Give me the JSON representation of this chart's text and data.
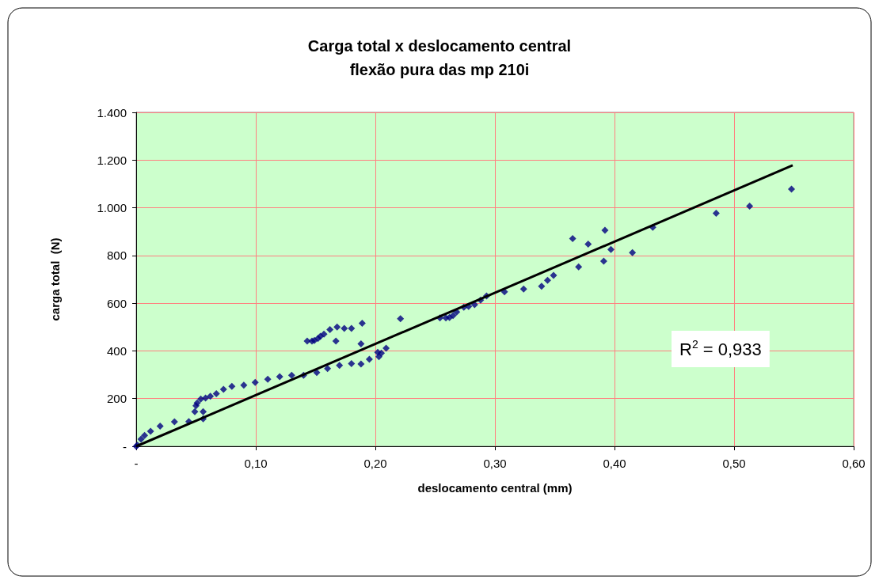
{
  "chart_data": {
    "type": "scatter",
    "title": "Carga total x deslocamento central\nflexão pura das mp 210i",
    "xlabel": "deslocamento central (mm)",
    "ylabel": "carga total  (N)",
    "annotations": [
      "R$^{2}$ = 0,933"
    ],
    "xlim": [
      0,
      0.6
    ],
    "ylim": [
      0,
      1400
    ],
    "xticks": [
      {
        "value": 0,
        "label": "-"
      },
      {
        "value": 0.1,
        "label": "0,10"
      },
      {
        "value": 0.2,
        "label": "0,20"
      },
      {
        "value": 0.3,
        "label": "0,30"
      },
      {
        "value": 0.4,
        "label": "0,40"
      },
      {
        "value": 0.5,
        "label": "0,50"
      },
      {
        "value": 0.6,
        "label": "0,60"
      }
    ],
    "yticks": [
      {
        "value": 0,
        "label": "-"
      },
      200,
      400,
      600,
      800,
      {
        "value": 1000,
        "label": "1.000"
      },
      {
        "value": 1200,
        "label": "1.200"
      },
      {
        "value": 1400,
        "label": "1.400"
      }
    ],
    "grid": true,
    "marker": "diamond",
    "series": [
      {
        "color": "#000080",
        "x": [
          0,
          0.001,
          0.004,
          0.007,
          0.012,
          0.02,
          0.032,
          0.044,
          0.049,
          0.056,
          0.056,
          0.05,
          0.051,
          0.054,
          0.058,
          0.062,
          0.067,
          0.073,
          0.08,
          0.09,
          0.0995,
          0.11,
          0.12,
          0.13,
          0.14,
          0.151,
          0.16,
          0.17,
          0.18,
          0.188,
          0.195,
          0.202,
          0.203,
          0.205,
          0.209,
          0.143,
          0.147,
          0.149,
          0.152,
          0.154,
          0.157,
          0.162,
          0.168,
          0.174,
          0.18,
          0.189,
          0.167,
          0.188,
          0.221,
          0.254,
          0.259,
          0.262,
          0.265,
          0.268,
          0.274,
          0.278,
          0.283,
          0.288,
          0.293,
          0.308,
          0.324,
          0.339,
          0.344,
          0.349,
          0.365,
          0.37,
          0.378,
          0.391,
          0.392,
          0.397,
          0.415,
          0.432,
          0.485,
          0.513,
          0.548
        ],
        "values": [
          0,
          5,
          30,
          46,
          63,
          85,
          103,
          104,
          145,
          145,
          115,
          170,
          182,
          198,
          202,
          210,
          221,
          239,
          251,
          256,
          268,
          281,
          292,
          298,
          298,
          309,
          326,
          339,
          347,
          345,
          365,
          394,
          376,
          391,
          411,
          441,
          441,
          444,
          452,
          461,
          470,
          489,
          500,
          494,
          494,
          516,
          441,
          430,
          535,
          538,
          538,
          540,
          548,
          563,
          583,
          586,
          594,
          613,
          630,
          648,
          659,
          671,
          696,
          717,
          871,
          752,
          848,
          776,
          906,
          825,
          812,
          918,
          977,
          1007,
          1078
        ]
      },
      {
        "type": "line",
        "color": "#000000",
        "marker": "none",
        "x": [
          0,
          0.549
        ],
        "values": [
          0,
          1178
        ]
      }
    ]
  }
}
